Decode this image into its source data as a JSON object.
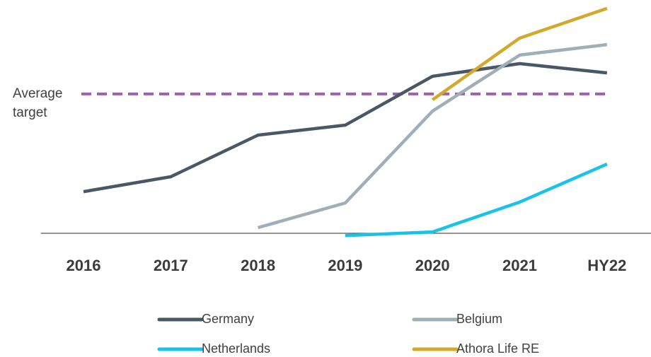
{
  "chart_data": {
    "type": "line",
    "categories": [
      "2016",
      "2017",
      "2018",
      "2019",
      "2020",
      "2021",
      "HY22"
    ],
    "series": [
      {
        "name": "Germany",
        "color": "#4a5764",
        "values": [
          18.4,
          25,
          43.4,
          47.8,
          69.4,
          75,
          70.9
        ]
      },
      {
        "name": "Belgium",
        "color": "#a0aeb8",
        "values": [
          null,
          null,
          2.5,
          13.4,
          54,
          78.8,
          83.4
        ]
      },
      {
        "name": "Netherlands",
        "color": "#19c3e8",
        "values": [
          null,
          null,
          null,
          -1,
          0.6,
          13.8,
          30.6
        ]
      },
      {
        "name": "Athora Life RE",
        "color": "#d4a82a",
        "values": [
          null,
          null,
          null,
          null,
          59,
          86.3,
          99.4
        ]
      }
    ],
    "annotation": {
      "text": "Average target",
      "value": 61.6,
      "color": "#9b62ad"
    },
    "ylim": [
      0,
      100
    ]
  }
}
